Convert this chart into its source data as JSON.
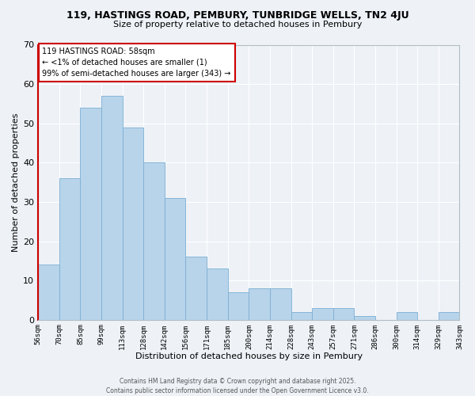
{
  "title": "119, HASTINGS ROAD, PEMBURY, TUNBRIDGE WELLS, TN2 4JU",
  "subtitle": "Size of property relative to detached houses in Pembury",
  "xlabel": "Distribution of detached houses by size in Pembury",
  "ylabel": "Number of detached properties",
  "bar_vals": [
    14,
    36,
    54,
    57,
    49,
    40,
    31,
    16,
    13,
    7,
    8,
    8,
    2,
    3,
    3,
    1,
    0,
    2,
    0,
    2
  ],
  "xlabels": [
    "56sqm",
    "70sqm",
    "85sqm",
    "99sqm",
    "113sqm",
    "128sqm",
    "142sqm",
    "156sqm",
    "171sqm",
    "185sqm",
    "200sqm",
    "214sqm",
    "228sqm",
    "243sqm",
    "257sqm",
    "271sqm",
    "286sqm",
    "300sqm",
    "314sqm",
    "329sqm",
    "343sqm"
  ],
  "bar_color": "#b8d4ea",
  "bar_edge_color": "#7bafd4",
  "highlight_color": "#cc0000",
  "ylim": [
    0,
    70
  ],
  "yticks": [
    0,
    10,
    20,
    30,
    40,
    50,
    60,
    70
  ],
  "annotation_title": "119 HASTINGS ROAD: 58sqm",
  "annotation_line1": "← <1% of detached houses are smaller (1)",
  "annotation_line2": "99% of semi-detached houses are larger (343) →",
  "footer1": "Contains HM Land Registry data © Crown copyright and database right 2025.",
  "footer2": "Contains public sector information licensed under the Open Government Licence v3.0.",
  "background_color": "#eef2f7",
  "grid_color": "#ffffff"
}
